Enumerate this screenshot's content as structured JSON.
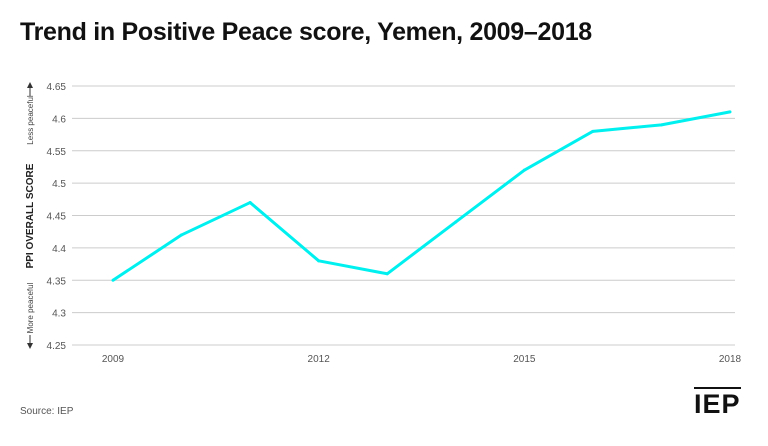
{
  "title": "Trend in Positive Peace score, Yemen, 2009–2018",
  "source": "Source: IEP",
  "logo": "IEP",
  "colors": {
    "line": "#00f0f0",
    "grid": "#cccccc"
  },
  "chart_data": {
    "type": "line",
    "title": "Trend in Positive Peace score, Yemen, 2009–2018",
    "ylabel": "PPI OVERALL SCORE",
    "ylabel_top": "Less peaceful",
    "ylabel_bottom": "More peaceful",
    "xlabel": "",
    "ylim": [
      4.25,
      4.65
    ],
    "yticks": [
      "4.25",
      "4.3",
      "4.35",
      "4.4",
      "4.45",
      "4.5",
      "4.55",
      "4.6",
      "4.65"
    ],
    "xticks": [
      "2009",
      "2012",
      "2015",
      "2018"
    ],
    "grid": true,
    "x": [
      2009,
      2010,
      2011,
      2012,
      2013,
      2014,
      2015,
      2016,
      2017,
      2018
    ],
    "values": [
      4.35,
      4.42,
      4.47,
      4.38,
      4.36,
      4.44,
      4.52,
      4.58,
      4.59,
      4.61
    ]
  }
}
